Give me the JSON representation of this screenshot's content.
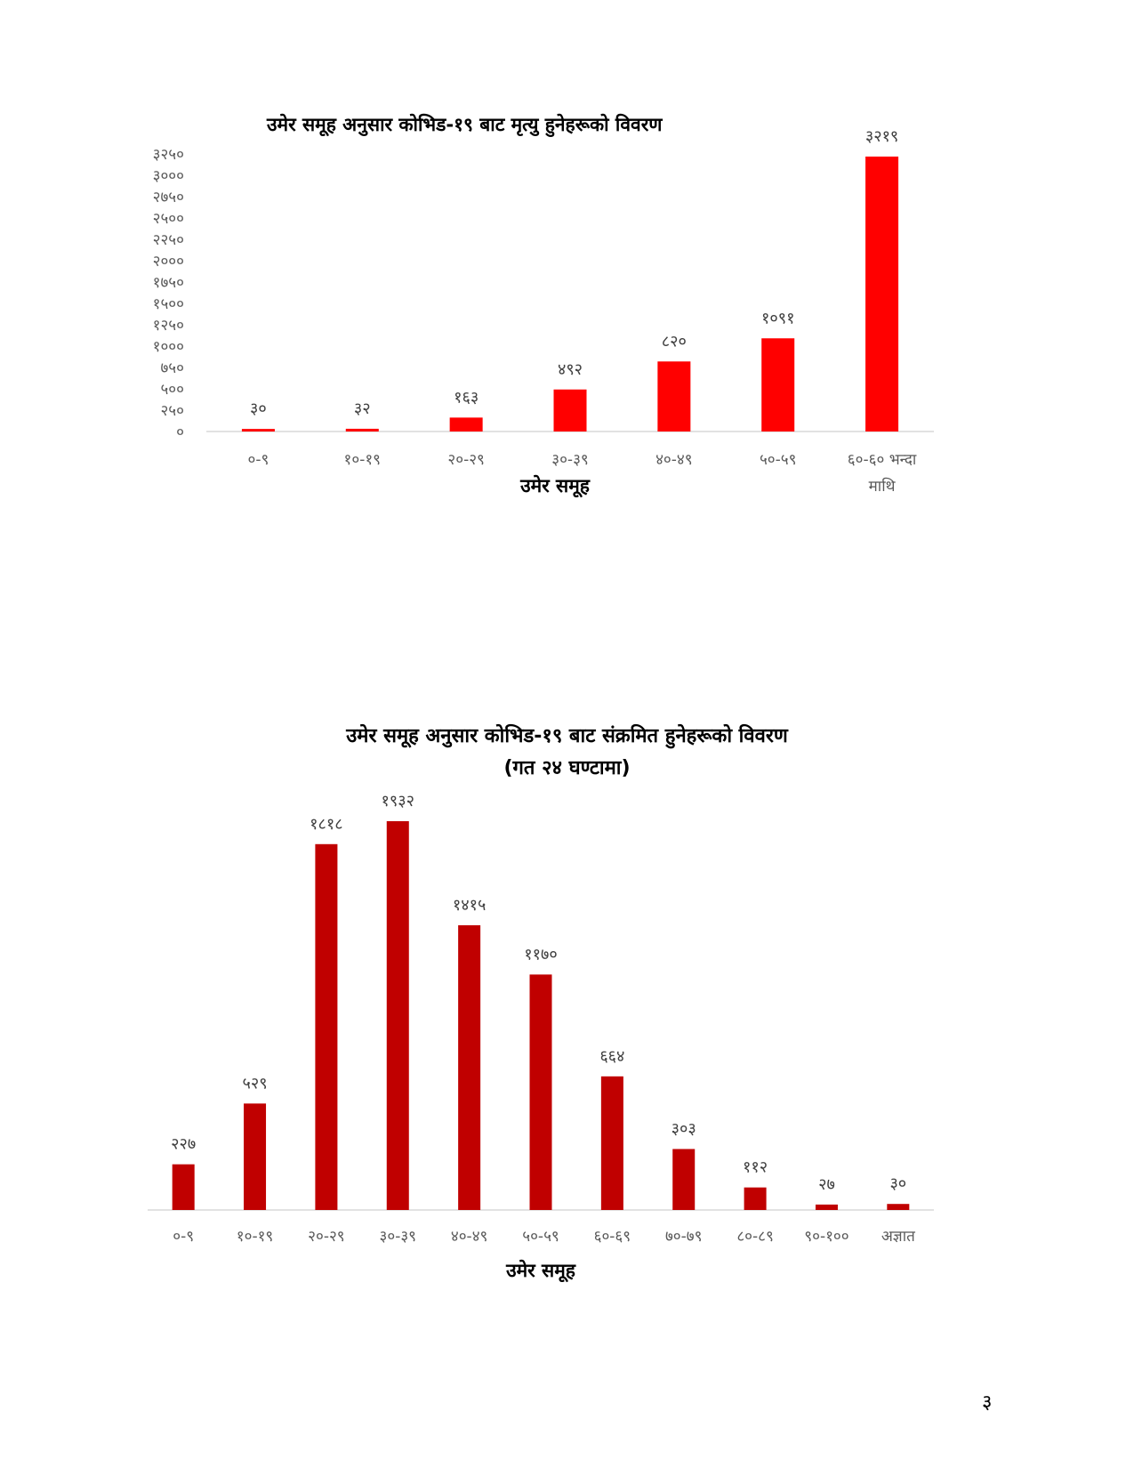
{
  "page_number": "३",
  "chart_data": [
    {
      "type": "bar",
      "title": "उमेर समूह अनुसार कोभिड-१९ बाट मृत्यु हुनेहरूको विवरण",
      "xlabel": "उमेर समूह",
      "ylabel": "",
      "categories": [
        "०-९",
        "१०-१९",
        "२०-२९",
        "३०-३९",
        "४०-४९",
        "५०-५९",
        "६०-६० भन्दा माथि"
      ],
      "values": [
        30,
        32,
        163,
        492,
        820,
        1091,
        3219
      ],
      "data_labels": [
        "३०",
        "३२",
        "१६३",
        "४९२",
        "८२०",
        "१०९१",
        "३२१९"
      ],
      "ylim": [
        0,
        3250
      ],
      "y_ticks": [
        "०",
        "२५०",
        "५००",
        "७५०",
        "१०००",
        "१२५०",
        "१५००",
        "१७५०",
        "२०००",
        "२२५०",
        "२५००",
        "२७५०",
        "३०००",
        "३२५०"
      ],
      "y_tick_values": [
        0,
        250,
        500,
        750,
        1000,
        1250,
        1500,
        1750,
        2000,
        2250,
        2500,
        2750,
        3000,
        3250
      ],
      "bar_color": "#ff0000",
      "grid": false,
      "legend": "none"
    },
    {
      "type": "bar",
      "title": "उमेर समूह अनुसार कोभिड-१९ बाट संक्रमित हुनेहरूको विवरण",
      "subtitle": "(गत २४ घण्टामा)",
      "xlabel": "उमेर समूह",
      "ylabel": "",
      "categories": [
        "०-९",
        "१०-१९",
        "२०-२९",
        "३०-३९",
        "४०-४९",
        "५०-५९",
        "६०-६९",
        "७०-७९",
        "८०-८९",
        "९०-१००",
        "अज्ञात"
      ],
      "values": [
        227,
        529,
        1818,
        1932,
        1415,
        1170,
        664,
        303,
        112,
        27,
        30
      ],
      "data_labels": [
        "२२७",
        "५२९",
        "१८१८",
        "१९३२",
        "१४१५",
        "११७०",
        "६६४",
        "३०३",
        "११२",
        "२७",
        "३०"
      ],
      "bar_color": "#c00000",
      "grid": false,
      "legend": "none"
    }
  ]
}
